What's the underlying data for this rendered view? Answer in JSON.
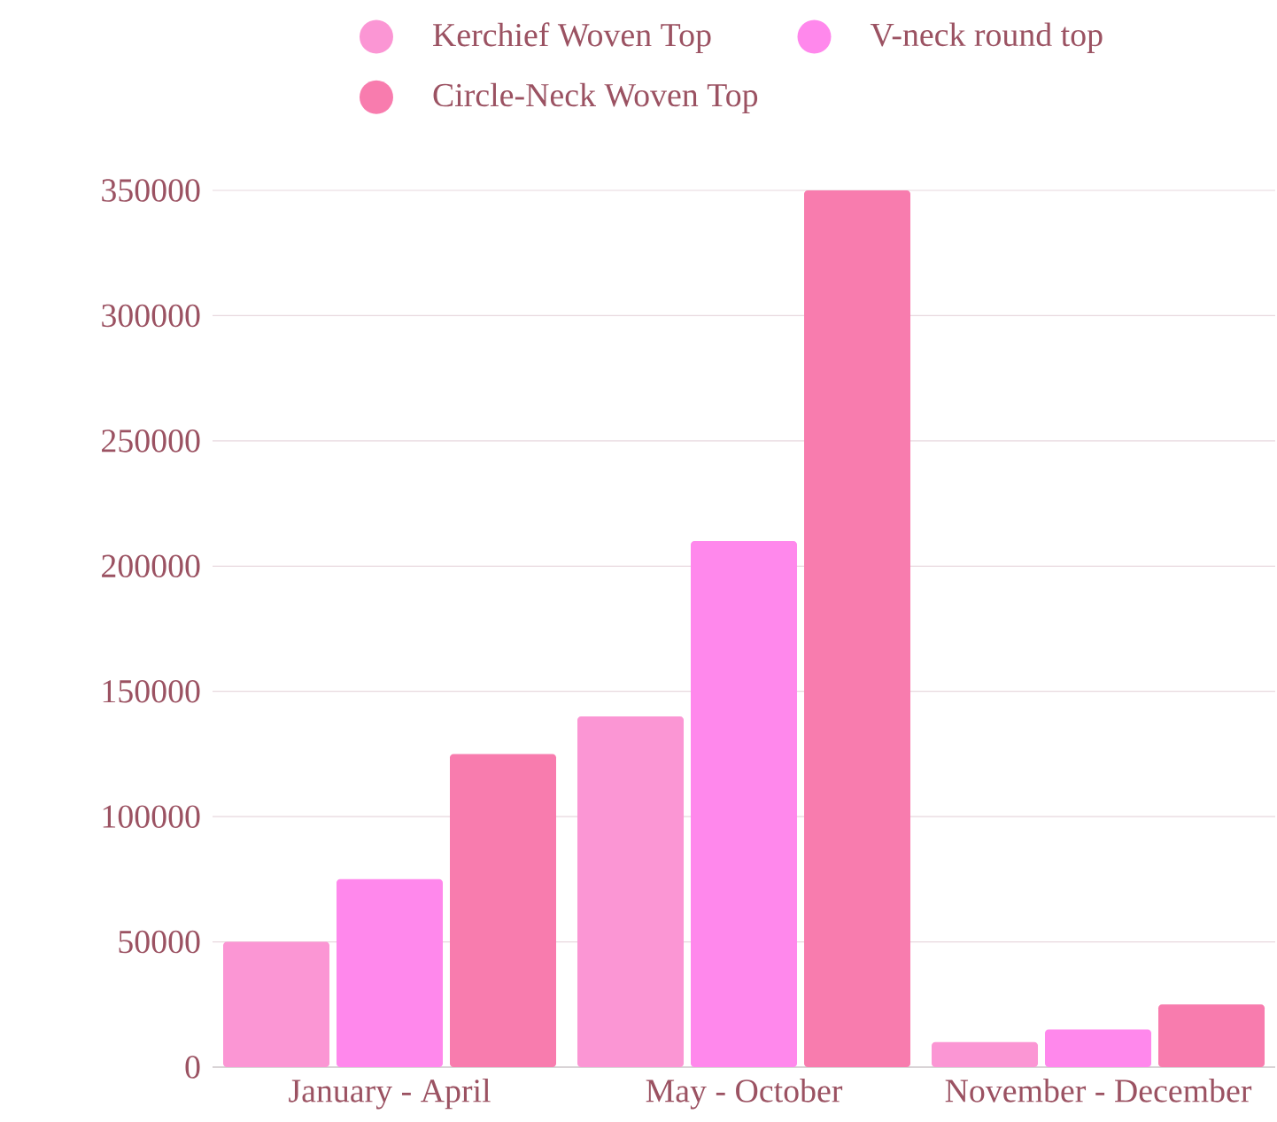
{
  "chart_data": {
    "type": "bar",
    "categories": [
      "January - April",
      "May - October",
      "November - December"
    ],
    "series": [
      {
        "name": "Kerchief Woven Top",
        "color": "#fb96d4",
        "values": [
          50000,
          140000,
          10000
        ]
      },
      {
        "name": "V-neck round top",
        "color": "#ff88ec",
        "values": [
          75000,
          210000,
          15000
        ]
      },
      {
        "name": "Circle-Neck Woven Top",
        "color": "#f87cae",
        "values": [
          125000,
          350000,
          25000
        ]
      }
    ],
    "ylim": [
      0,
      350000
    ],
    "yticks": [
      0,
      50000,
      100000,
      150000,
      200000,
      250000,
      300000,
      350000
    ],
    "grid": "y",
    "legend": "top"
  }
}
